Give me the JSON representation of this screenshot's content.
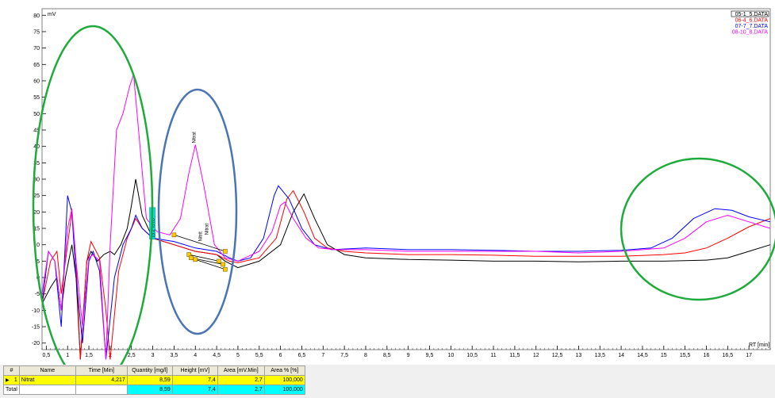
{
  "chart_data": {
    "type": "line",
    "ylabel": "mV",
    "xlabel": "RT [min]",
    "xlim": [
      0.4,
      17.5
    ],
    "ylim": [
      -22,
      82
    ],
    "x_ticks": [
      "0,5",
      "1",
      "1,5",
      "2",
      "2,5",
      "3",
      "3,5",
      "4",
      "4,5",
      "5",
      "5,5",
      "6",
      "6,5",
      "7",
      "7,5",
      "8",
      "8,5",
      "9",
      "9,5",
      "10",
      "10,5",
      "11",
      "11,5",
      "12",
      "12,5",
      "13",
      "13,5",
      "14",
      "14,5",
      "15",
      "15,5",
      "16",
      "16,5",
      "17"
    ],
    "y_ticks": [
      "-20",
      "-15",
      "-10",
      "-5",
      "0",
      "5",
      "10",
      "15",
      "20",
      "25",
      "30",
      "35",
      "40",
      "45",
      "50",
      "55",
      "60",
      "65",
      "70",
      "75",
      "80"
    ],
    "legend": [
      "05-1_5.DATA",
      "06-4_6.DATA",
      "07-7_7.DATA",
      "08-10_8.DATA"
    ],
    "series": [
      {
        "name": "05-1_5.DATA",
        "color": "#000000",
        "points": [
          [
            0.4,
            -8
          ],
          [
            0.6,
            -3
          ],
          [
            0.75,
            0
          ],
          [
            0.85,
            -10
          ],
          [
            0.95,
            0
          ],
          [
            1.1,
            10
          ],
          [
            1.2,
            0
          ],
          [
            1.3,
            -25
          ],
          [
            1.45,
            5
          ],
          [
            1.55,
            8
          ],
          [
            1.7,
            5
          ],
          [
            1.85,
            7
          ],
          [
            2.0,
            8
          ],
          [
            2.1,
            7
          ],
          [
            2.25,
            10
          ],
          [
            2.4,
            15
          ],
          [
            2.5,
            22
          ],
          [
            2.6,
            30
          ],
          [
            2.75,
            19
          ],
          [
            3.0,
            12
          ],
          [
            3.5,
            10
          ],
          [
            4.0,
            8
          ],
          [
            4.5,
            7
          ],
          [
            4.7,
            5
          ],
          [
            5.0,
            3
          ],
          [
            5.5,
            5
          ],
          [
            6.0,
            10
          ],
          [
            6.3,
            20
          ],
          [
            6.55,
            25.5
          ],
          [
            6.8,
            18
          ],
          [
            7.1,
            10
          ],
          [
            7.5,
            7
          ],
          [
            8.0,
            6
          ],
          [
            9,
            5.5
          ],
          [
            10,
            5.3
          ],
          [
            11,
            5
          ],
          [
            12,
            5
          ],
          [
            13,
            4.8
          ],
          [
            14,
            5
          ],
          [
            15,
            5
          ],
          [
            16,
            5.3
          ],
          [
            16.5,
            6
          ],
          [
            17,
            8
          ],
          [
            17.5,
            10
          ]
        ]
      },
      {
        "name": "06-4_6.DATA",
        "color": "#ff0000",
        "points": [
          [
            0.4,
            -8
          ],
          [
            0.6,
            5
          ],
          [
            0.75,
            8
          ],
          [
            0.85,
            -5
          ],
          [
            0.95,
            5
          ],
          [
            1.1,
            20
          ],
          [
            1.2,
            5
          ],
          [
            1.3,
            -25
          ],
          [
            1.45,
            5
          ],
          [
            1.55,
            11
          ],
          [
            1.75,
            6
          ],
          [
            1.9,
            -10
          ],
          [
            2.0,
            -25
          ],
          [
            2.2,
            2
          ],
          [
            2.4,
            12
          ],
          [
            2.6,
            18
          ],
          [
            2.75,
            15
          ],
          [
            3.0,
            12
          ],
          [
            3.5,
            10
          ],
          [
            4.0,
            8
          ],
          [
            4.5,
            7
          ],
          [
            4.8,
            5
          ],
          [
            5.0,
            4.5
          ],
          [
            5.5,
            6
          ],
          [
            5.9,
            12
          ],
          [
            6.15,
            24
          ],
          [
            6.3,
            26.5
          ],
          [
            6.55,
            20
          ],
          [
            6.8,
            12
          ],
          [
            7.1,
            9
          ],
          [
            7.5,
            8
          ],
          [
            8,
            7.5
          ],
          [
            9,
            7
          ],
          [
            10,
            7
          ],
          [
            11,
            6.8
          ],
          [
            12,
            6.5
          ],
          [
            13,
            6.5
          ],
          [
            14,
            6.5
          ],
          [
            15,
            7
          ],
          [
            15.5,
            7.5
          ],
          [
            16,
            9
          ],
          [
            16.5,
            12
          ],
          [
            17,
            15.5
          ],
          [
            17.5,
            18
          ]
        ]
      },
      {
        "name": "07-7_7.DATA",
        "color": "#0000ff",
        "points": [
          [
            0.4,
            -8
          ],
          [
            0.55,
            8
          ],
          [
            0.7,
            5
          ],
          [
            0.85,
            -15
          ],
          [
            1.0,
            25
          ],
          [
            1.1,
            20
          ],
          [
            1.2,
            0
          ],
          [
            1.35,
            -20
          ],
          [
            1.5,
            5
          ],
          [
            1.6,
            8
          ],
          [
            1.75,
            2
          ],
          [
            1.9,
            -25
          ],
          [
            2.1,
            0
          ],
          [
            2.3,
            10
          ],
          [
            2.5,
            15
          ],
          [
            2.6,
            19
          ],
          [
            2.75,
            15
          ],
          [
            3.0,
            12
          ],
          [
            3.5,
            11
          ],
          [
            4.0,
            9
          ],
          [
            4.5,
            8
          ],
          [
            4.8,
            6
          ],
          [
            5.0,
            5
          ],
          [
            5.3,
            6
          ],
          [
            5.6,
            12
          ],
          [
            5.85,
            25
          ],
          [
            5.95,
            28
          ],
          [
            6.2,
            24
          ],
          [
            6.5,
            15
          ],
          [
            6.8,
            10
          ],
          [
            7.2,
            8.5
          ],
          [
            8,
            9
          ],
          [
            9,
            8.5
          ],
          [
            10,
            8.5
          ],
          [
            11,
            8.3
          ],
          [
            12,
            8
          ],
          [
            13,
            8
          ],
          [
            14,
            8.3
          ],
          [
            14.7,
            9
          ],
          [
            15.2,
            12
          ],
          [
            15.7,
            18
          ],
          [
            16.2,
            21
          ],
          [
            16.6,
            20.5
          ],
          [
            17.0,
            18.5
          ],
          [
            17.5,
            17
          ]
        ]
      },
      {
        "name": "08-10_8.DATA",
        "color": "#ff00ff",
        "points": [
          [
            0.4,
            -5
          ],
          [
            0.55,
            8
          ],
          [
            0.7,
            5
          ],
          [
            0.85,
            -10
          ],
          [
            1.0,
            15
          ],
          [
            1.1,
            21
          ],
          [
            1.2,
            5
          ],
          [
            1.35,
            -15
          ],
          [
            1.5,
            6
          ],
          [
            1.6,
            7
          ],
          [
            1.75,
            5
          ],
          [
            1.9,
            -25
          ],
          [
            2.0,
            10
          ],
          [
            2.15,
            45
          ],
          [
            2.3,
            50
          ],
          [
            2.45,
            58
          ],
          [
            2.55,
            62
          ],
          [
            2.7,
            40
          ],
          [
            2.85,
            18
          ],
          [
            3.1,
            14
          ],
          [
            3.4,
            13
          ],
          [
            3.65,
            18
          ],
          [
            3.85,
            32
          ],
          [
            4.0,
            40.5
          ],
          [
            4.2,
            28
          ],
          [
            4.45,
            10
          ],
          [
            4.7,
            6
          ],
          [
            5.0,
            5
          ],
          [
            5.5,
            8
          ],
          [
            5.8,
            14
          ],
          [
            6.0,
            22
          ],
          [
            6.1,
            23
          ],
          [
            6.3,
            18
          ],
          [
            6.6,
            12
          ],
          [
            6.9,
            9
          ],
          [
            7.3,
            8.5
          ],
          [
            8,
            8.5
          ],
          [
            9,
            8
          ],
          [
            10,
            8
          ],
          [
            11,
            8
          ],
          [
            12,
            8
          ],
          [
            13,
            7.5
          ],
          [
            14,
            8
          ],
          [
            15,
            9
          ],
          [
            15.5,
            12
          ],
          [
            16,
            17
          ],
          [
            16.5,
            19
          ],
          [
            17,
            17
          ],
          [
            17.5,
            15
          ]
        ]
      }
    ],
    "peak_labels": [
      {
        "text": "Nitrat",
        "x": 4.0,
        "y": 41
      },
      {
        "text": "Nitrat",
        "x": 4.3,
        "y": 13
      },
      {
        "text": "Nitrit",
        "x": 4.15,
        "y": 11
      }
    ],
    "markers": [
      {
        "x": 3.5,
        "y": 13
      },
      {
        "x": 4.7,
        "y": 8
      },
      {
        "x": 3.85,
        "y": 7
      },
      {
        "x": 4.55,
        "y": 5
      },
      {
        "x": 3.9,
        "y": 6
      },
      {
        "x": 4.65,
        "y": 4
      },
      {
        "x": 4.0,
        "y": 5.5
      },
      {
        "x": 4.7,
        "y": 2.5
      }
    ],
    "box_label": {
      "text": "15.2 ISTD",
      "x": 3.0,
      "y": 17
    }
  },
  "table": {
    "headers": [
      "#",
      "Name",
      "Time [Min]",
      "Quantity [mg/l]",
      "Height [mV]",
      "Area [mV.Min]",
      "Area % [%]"
    ],
    "rows": [
      {
        "num": "1",
        "name": "Nitrat",
        "time": "4,217",
        "quantity": "8,59",
        "height": "7,4",
        "area": "2,7",
        "area_pct": "100,000"
      }
    ],
    "total": {
      "label": "Total",
      "quantity": "8,59",
      "height": "7,4",
      "area": "2,7",
      "area_pct": "100,000"
    }
  },
  "annotations": [
    {
      "shape": "ellipse",
      "color": "#1faa3c"
    },
    {
      "shape": "ellipse",
      "color": "#4a74b4"
    },
    {
      "shape": "ellipse",
      "color": "#1faa3c"
    }
  ]
}
